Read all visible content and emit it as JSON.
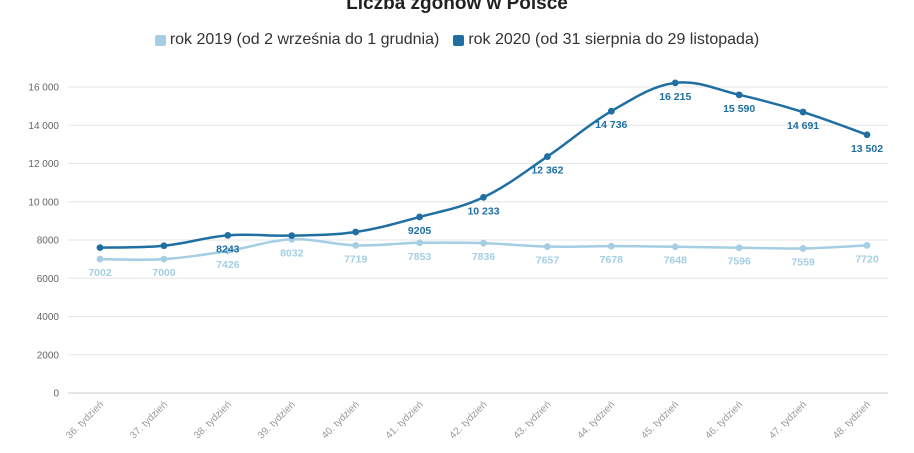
{
  "chart_data": {
    "type": "line",
    "title": "Liczba zgonów w Polsce",
    "xlabel": "",
    "ylabel": "",
    "categories": [
      "36. tydzień",
      "37. tydzień",
      "38. tydzień",
      "39. tydzień",
      "40. tydzień",
      "41. tydzień",
      "42. tydzień",
      "43. tydzień",
      "44. tydzień",
      "45. tydzień",
      "46. tydzień",
      "47. tydzień",
      "48. tydzień"
    ],
    "ylim": [
      0,
      16000
    ],
    "yticks": [
      "0",
      "2000",
      "4000",
      "6000",
      "8000",
      "10 000",
      "12 000",
      "14 000",
      "16 000"
    ],
    "yticks_values": [
      0,
      2000,
      4000,
      6000,
      8000,
      10000,
      12000,
      14000,
      16000
    ],
    "grid": true,
    "legend_placement": "top-center",
    "series": [
      {
        "name": "rok 2019 (od 2 września do 1 grudnia)",
        "color": "#a6cee3",
        "values": [
          7002,
          7000,
          7426,
          8032,
          7719,
          7853,
          7836,
          7657,
          7678,
          7648,
          7596,
          7559,
          7720
        ],
        "labels": [
          "7002",
          "7000",
          "7426",
          "8032",
          "7719",
          "7853",
          "7836",
          "7657",
          "7678",
          "7648",
          "7596",
          "7559",
          "7720"
        ]
      },
      {
        "name": "rok 2020 (od 31 sierpnia do 29 listopada)",
        "color": "#1f6fa3",
        "values": [
          7600,
          7700,
          8243,
          8230,
          8420,
          9205,
          10233,
          12362,
          14736,
          16215,
          15590,
          14691,
          13502
        ],
        "labels": [
          "",
          "",
          "8243",
          "",
          "",
          "9205",
          "10 233",
          "12 362",
          "14 736",
          "16 215",
          "15 590",
          "14 691",
          "13 502"
        ]
      }
    ]
  }
}
